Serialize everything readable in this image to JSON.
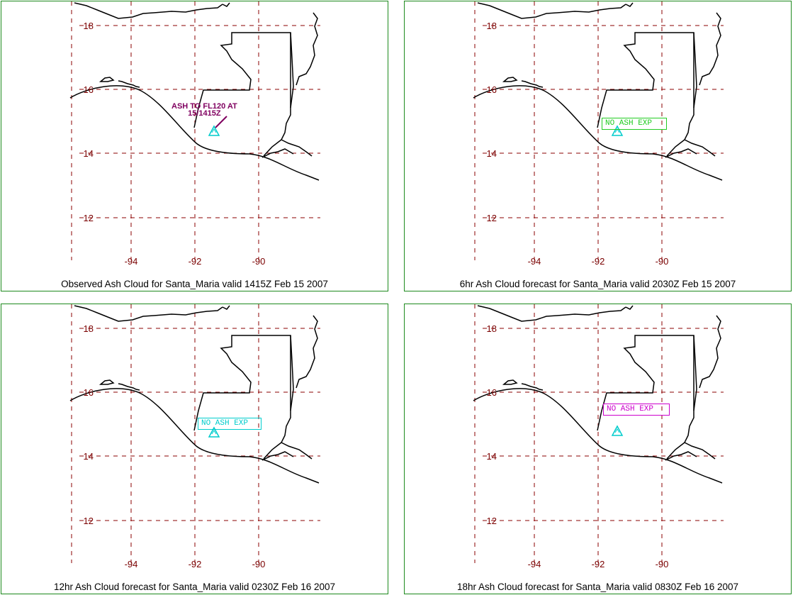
{
  "colors": {
    "grid": "#8b0000",
    "tick_label": "#7a0000",
    "coast": "#000000",
    "volcano": "#00cccc",
    "ash_observed": "#800060",
    "border": "#1e8a1e"
  },
  "map": {
    "lat_labels": [
      "18",
      "16",
      "14",
      "12"
    ],
    "lon_labels": [
      "-94",
      "-92",
      "-90"
    ],
    "volcano_icon": "volcano-triangle-icon"
  },
  "panels": [
    {
      "caption": "Observed Ash Cloud for Santa_Maria valid 1415Z Feb 15 2007",
      "annotation_line1": "ASH TO FL120 AT",
      "annotation_line2": "15/1415Z",
      "annotation_color": "#800060"
    },
    {
      "caption": "6hr Ash Cloud forecast for Santa_Maria valid 2030Z Feb 15 2007",
      "annotation": "NO ASH EXP",
      "annotation_color": "#22cc22"
    },
    {
      "caption": "12hr Ash Cloud forecast for Santa_Maria valid 0230Z Feb 16 2007",
      "annotation": "NO ASH EXP",
      "annotation_color": "#00cccc"
    },
    {
      "caption": "18hr Ash Cloud forecast for Santa_Maria valid 0830Z Feb 16 2007",
      "annotation": "NO ASH EXP",
      "annotation_color": "#cc00cc"
    }
  ]
}
